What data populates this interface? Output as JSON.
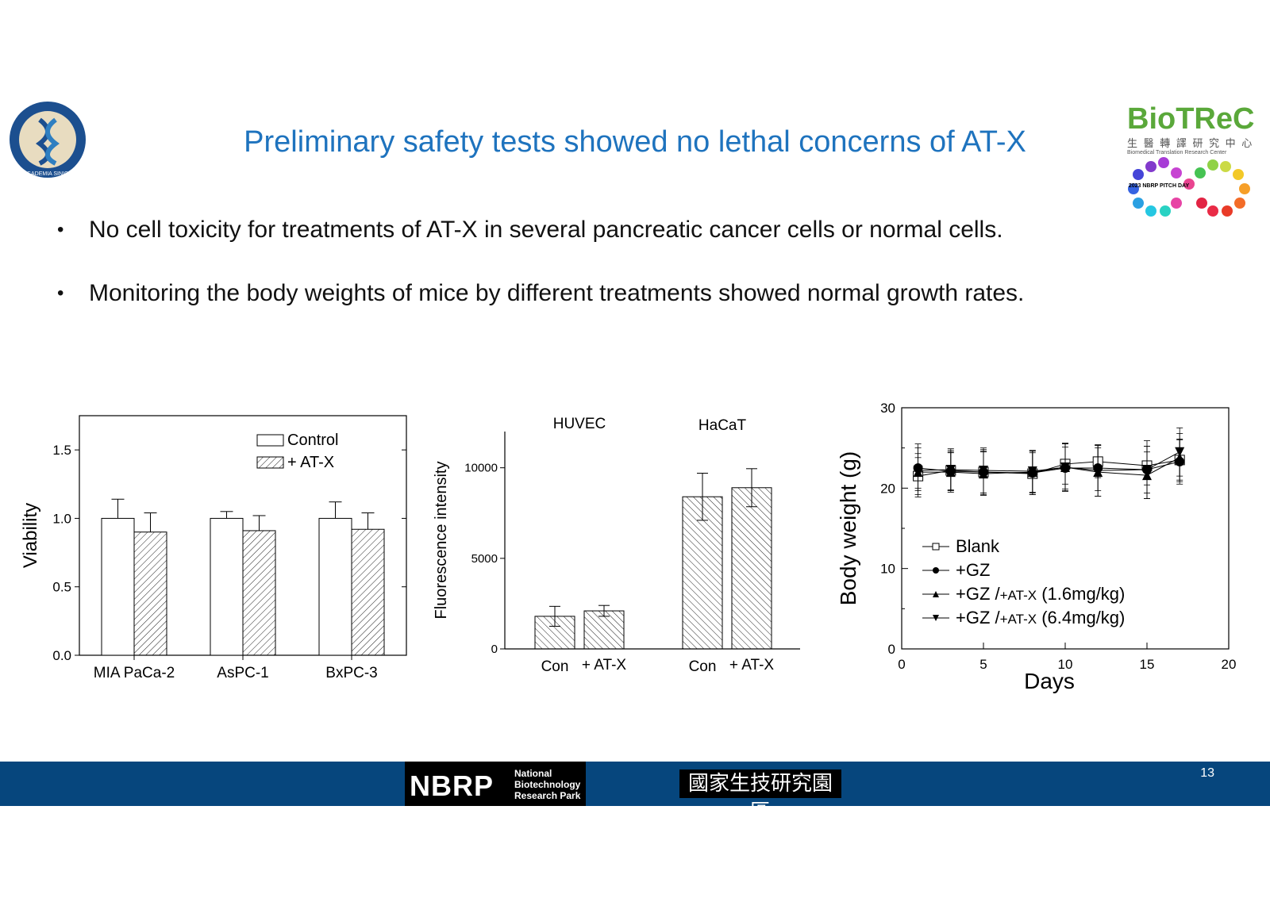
{
  "slide": {
    "title": "Preliminary safety tests showed no lethal concerns of AT-X",
    "bullets": [
      "No cell toxicity for treatments of AT-X in several pancreatic cancer cells or normal cells.",
      "Monitoring the body weights of mice by different treatments showed normal growth rates."
    ],
    "page_number": "13",
    "logos": {
      "left_seal_text": "ACADEMIA SINICA",
      "biotrec": "BioTReC",
      "biotrec_sub_cn": "生 醫 轉 譯 研 究 中 心",
      "biotrec_sub_en": "Biomedical Translation Research Center",
      "nbrp_day": "2023 NBRP PITCH DAY",
      "nbrp_mark": "NBRP",
      "nbrp_lines": [
        "National",
        "Biotechnology",
        "Research Park"
      ],
      "chinese_park": "國家生技研究園區"
    },
    "colors": {
      "title": "#1e73be",
      "footer": "#06467d"
    }
  },
  "chart_data": [
    {
      "type": "bar",
      "ylabel": "Viability",
      "ylim": [
        0,
        1.75
      ],
      "yticks": [
        "0.0",
        "0.5",
        "1.0",
        "1.5"
      ],
      "categories": [
        "MIA PaCa-2",
        "AsPC-1",
        "BxPC-3"
      ],
      "legend": [
        "Control",
        "+ AT-X"
      ],
      "series": [
        {
          "name": "Control",
          "values": [
            1.0,
            1.0,
            1.0
          ],
          "errors": [
            0.14,
            0.05,
            0.12
          ],
          "pattern": "none"
        },
        {
          "name": "+ AT-X",
          "values": [
            0.9,
            0.91,
            0.92
          ],
          "errors": [
            0.14,
            0.11,
            0.12
          ],
          "pattern": "backslash"
        }
      ]
    },
    {
      "type": "bar",
      "ylabel": "Fluorescence intensity",
      "ylim": [
        0,
        12000
      ],
      "yticks": [
        "0",
        "5000",
        "10000"
      ],
      "groups": [
        "HUVEC",
        "HaCaT"
      ],
      "categories": [
        "Con",
        "+ AT-X",
        "Con",
        "+ AT-X"
      ],
      "values": [
        1800,
        2100,
        8400,
        8900
      ],
      "errors": [
        550,
        300,
        1300,
        1050
      ],
      "pattern": "slash"
    },
    {
      "type": "line",
      "xlabel": "Days",
      "ylabel": "Body weight (g)",
      "xlim": [
        0,
        20
      ],
      "ylim": [
        0,
        30
      ],
      "xticks": [
        "0",
        "5",
        "10",
        "15",
        "20"
      ],
      "yticks": [
        "0",
        "10",
        "20",
        "30"
      ],
      "x": [
        1,
        3,
        5,
        8,
        10,
        12,
        15,
        17
      ],
      "series": [
        {
          "name": "Blank",
          "marker": "square-open",
          "values": [
            21.5,
            22.2,
            22.0,
            21.8,
            23.0,
            23.3,
            22.8,
            23.5
          ],
          "errors": [
            2.3,
            2.5,
            2.8,
            2.6,
            2.5,
            2.0,
            2.4,
            2.5
          ]
        },
        {
          "name": "+GZ",
          "marker": "circle",
          "values": [
            22.5,
            22.1,
            22.0,
            21.9,
            22.5,
            22.5,
            22.3,
            23.3
          ],
          "errors": [
            2.5,
            2.3,
            2.6,
            2.7,
            2.6,
            2.8,
            2.9,
            2.8
          ]
        },
        {
          "name": "+GZ /+AT-X (1.6mg/kg)",
          "marker": "triangle-up",
          "values": [
            22.0,
            22.0,
            21.8,
            22.0,
            22.6,
            22.0,
            21.6,
            23.8
          ],
          "errors": [
            2.3,
            2.5,
            2.7,
            2.6,
            2.9,
            3.0,
            2.9,
            3.0
          ]
        },
        {
          "name": "+GZ /+AT-X (6.4mg/kg)",
          "marker": "triangle-down",
          "values": [
            22.2,
            22.3,
            22.2,
            22.1,
            22.6,
            22.2,
            22.3,
            24.5
          ],
          "errors": [
            3.3,
            2.6,
            2.8,
            2.6,
            3.0,
            3.2,
            3.6,
            3.0
          ]
        }
      ],
      "legend_parts": {
        "blank": "Blank",
        "gz": "+GZ",
        "combo_prefix": "+GZ /",
        "combo_drug": "+AT-X",
        "dose_low": "(1.6mg/kg)",
        "dose_high": "(6.4mg/kg)"
      }
    }
  ]
}
